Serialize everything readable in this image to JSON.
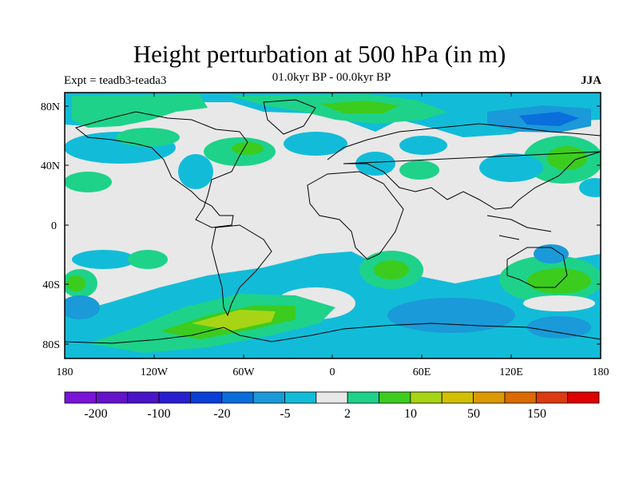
{
  "header": {
    "title": "Height perturbation at 500 hPa (in m)",
    "subtitle": "01.0kyr BP - 00.0kyr BP",
    "left_label": "Expt = teadb3-teada3",
    "right_label": "JJA"
  },
  "axes": {
    "lat_labels": [
      "80N",
      "40N",
      "0",
      "40S",
      "80S"
    ],
    "lon_labels": [
      "180",
      "120W",
      "60W",
      "0",
      "60E",
      "120E",
      "180"
    ]
  },
  "colorbar": {
    "colors": [
      "#7a14d8",
      "#6612cc",
      "#4a14c8",
      "#2a1fd0",
      "#0a3fd6",
      "#0a6edc",
      "#1a9ad8",
      "#12bcd8",
      "#e8e8e8",
      "#1ed28a",
      "#3ccc1e",
      "#a8d416",
      "#d2c000",
      "#dc9a00",
      "#dc6a00",
      "#dc3a10",
      "#e00000"
    ],
    "labels": [
      "-200",
      "-100",
      "-20",
      "-5",
      "2",
      "10",
      "50",
      "150"
    ]
  },
  "legend": {
    "colors": {
      "background": "#e8e8e8",
      "neg_light": "#12bcd8",
      "neg_mid": "#1a9ad8",
      "neg_strong": "#0a6edc",
      "pos_light": "#1ed28a",
      "pos_mid": "#3ccc1e",
      "pos_strong": "#a8d416"
    }
  }
}
